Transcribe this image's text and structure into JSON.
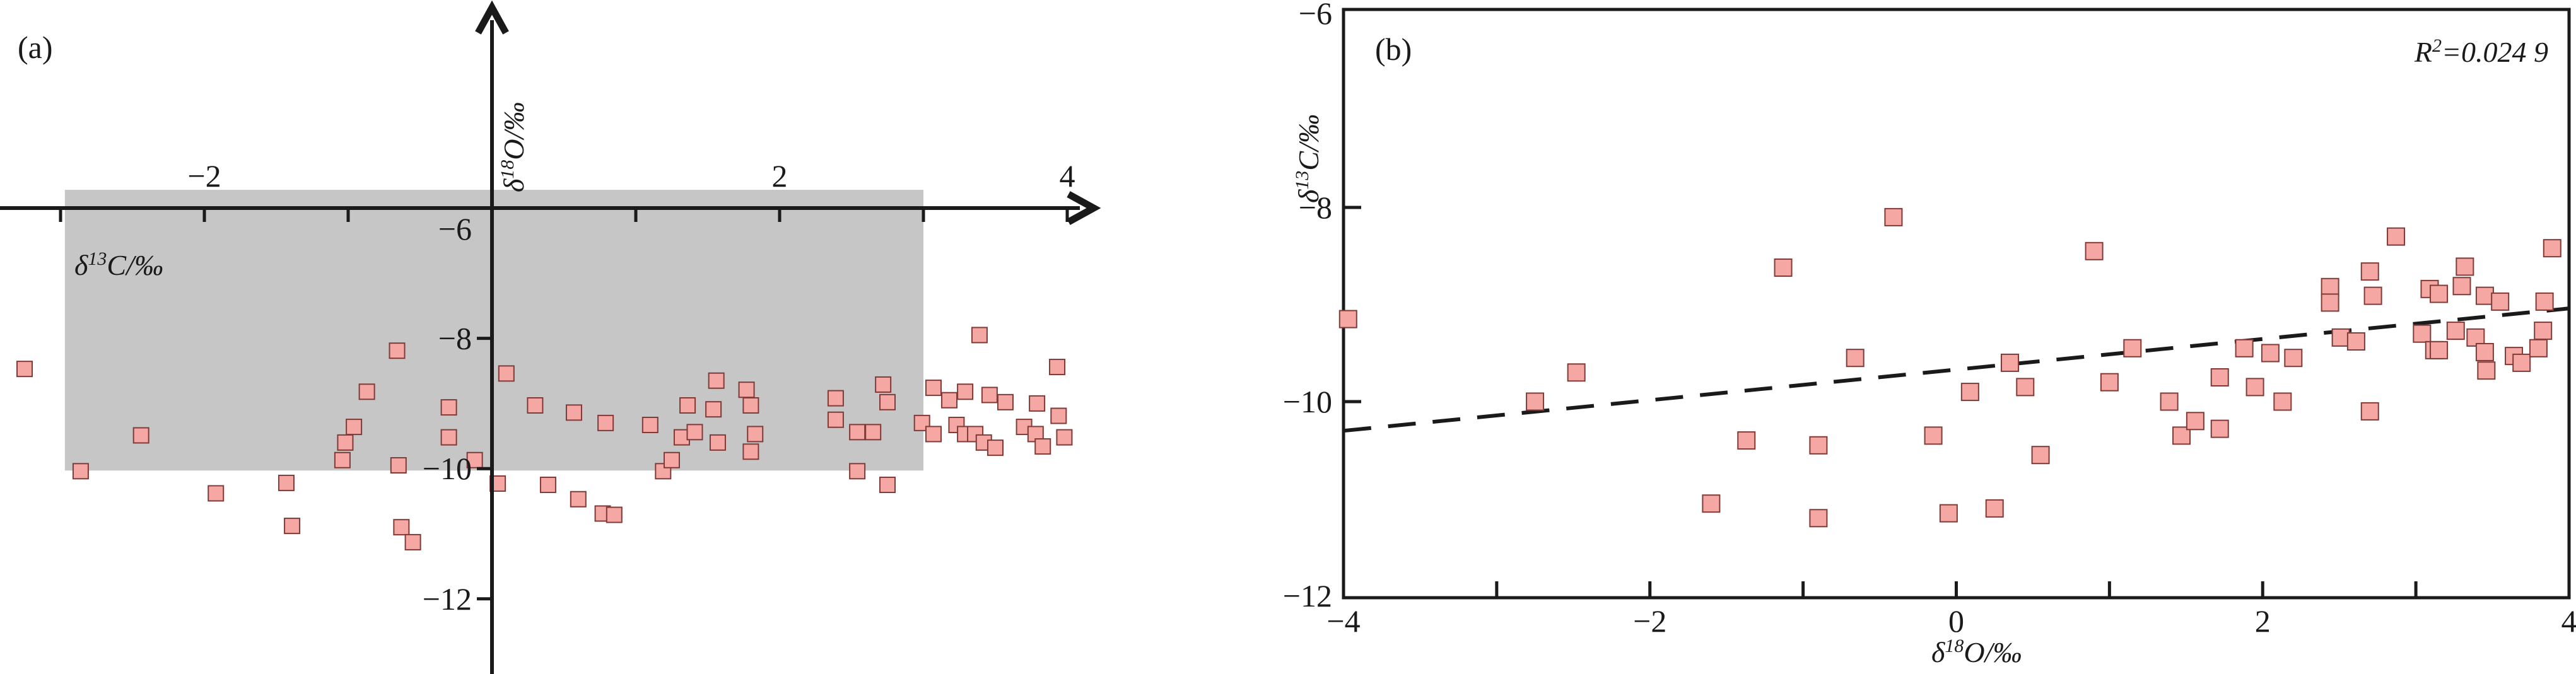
{
  "figure": {
    "background": "#ffffff",
    "ink_color": "#1a1a1a",
    "marker_fill": "#f5a7a3",
    "marker_stroke": "#7e3b38",
    "shaded_fill": "#c6c6c6"
  },
  "chart_data": [
    {
      "type": "scatter",
      "panel_tag": "(a)",
      "title": "",
      "xlabel": "δ¹³C/‰",
      "xlabel_parts": {
        "sym": "δ",
        "sup": "13",
        "rest": "C/‰"
      },
      "ylabel": "δ¹⁸O/‰",
      "ylabel_parts": {
        "sym": "δ",
        "sup": "18",
        "rest": "O/‰"
      },
      "xlim": [
        -3.4,
        4.2
      ],
      "ylim": [
        -13.3,
        -2.9
      ],
      "axis_style": "crossing-arrows",
      "grid": false,
      "x_tick_marks": [
        -3,
        -2,
        -1,
        1,
        2,
        3,
        4
      ],
      "x_tick_labels": [
        {
          "v": -2,
          "label": "−2"
        },
        {
          "v": 2,
          "label": "2"
        },
        {
          "v": 4,
          "label": "4"
        }
      ],
      "y_tick_marks": [
        -8,
        -10,
        -12
      ],
      "y_tick_labels": [
        {
          "v": -6,
          "label": "−6"
        },
        {
          "v": -8,
          "label": "−8"
        },
        {
          "v": -10,
          "label": "−10"
        },
        {
          "v": -12,
          "label": "−12"
        }
      ],
      "shaded_region": {
        "x1": -2.97,
        "x2": 3.0,
        "y1": -5.72,
        "y2": -10.03
      },
      "points": [
        [
          -3.25,
          -8.47
        ],
        [
          -2.86,
          -10.04
        ],
        [
          -2.44,
          -9.49
        ],
        [
          -1.92,
          -10.38
        ],
        [
          -1.43,
          -10.22
        ],
        [
          -1.39,
          -10.88
        ],
        [
          -1.04,
          -9.87
        ],
        [
          -1.02,
          -9.6
        ],
        [
          -0.96,
          -9.36
        ],
        [
          -0.87,
          -8.82
        ],
        [
          -0.66,
          -8.19
        ],
        [
          -0.65,
          -9.95
        ],
        [
          -0.63,
          -10.9
        ],
        [
          -0.55,
          -11.13
        ],
        [
          -0.3,
          -9.06
        ],
        [
          -0.3,
          -9.52
        ],
        [
          -0.12,
          -9.87
        ],
        [
          0.04,
          -10.23
        ],
        [
          0.1,
          -8.54
        ],
        [
          0.3,
          -9.03
        ],
        [
          0.39,
          -10.25
        ],
        [
          0.57,
          -9.14
        ],
        [
          0.6,
          -10.47
        ],
        [
          0.77,
          -10.69
        ],
        [
          0.85,
          -10.71
        ],
        [
          0.79,
          -9.3
        ],
        [
          1.1,
          -9.33
        ],
        [
          1.19,
          -10.04
        ],
        [
          1.25,
          -9.87
        ],
        [
          1.32,
          -9.52
        ],
        [
          1.36,
          -9.03
        ],
        [
          1.41,
          -9.44
        ],
        [
          1.54,
          -9.09
        ],
        [
          1.56,
          -8.65
        ],
        [
          1.57,
          -9.6
        ],
        [
          1.77,
          -8.79
        ],
        [
          1.8,
          -9.03
        ],
        [
          1.83,
          -9.47
        ],
        [
          1.8,
          -9.74
        ],
        [
          2.39,
          -8.92
        ],
        [
          2.39,
          -9.25
        ],
        [
          2.54,
          -9.44
        ],
        [
          2.54,
          -10.04
        ],
        [
          2.65,
          -9.44
        ],
        [
          2.72,
          -8.71
        ],
        [
          2.75,
          -8.98
        ],
        [
          2.75,
          -10.25
        ],
        [
          2.99,
          -9.3
        ],
        [
          3.07,
          -8.76
        ],
        [
          3.07,
          -9.47
        ],
        [
          3.18,
          -8.95
        ],
        [
          3.23,
          -9.33
        ],
        [
          3.29,
          -8.82
        ],
        [
          3.29,
          -9.47
        ],
        [
          3.36,
          -9.47
        ],
        [
          3.39,
          -7.95
        ],
        [
          3.42,
          -9.6
        ],
        [
          3.46,
          -8.87
        ],
        [
          3.5,
          -9.68
        ],
        [
          3.57,
          -8.98
        ],
        [
          3.7,
          -9.36
        ],
        [
          3.78,
          -9.47
        ],
        [
          3.79,
          -9.0
        ],
        [
          3.83,
          -9.66
        ],
        [
          3.93,
          -8.44
        ],
        [
          3.94,
          -9.19
        ],
        [
          3.98,
          -9.52
        ]
      ]
    },
    {
      "type": "scatter",
      "panel_tag": "(b)",
      "title": "",
      "xlabel": "δ¹⁸O/‰",
      "xlabel_parts": {
        "sym": "δ",
        "sup": "18",
        "rest": "O/‰"
      },
      "ylabel": "δ¹³C/‰",
      "ylabel_parts": {
        "sym": "δ",
        "sup": "13",
        "rest": "C/‰"
      },
      "xlim": [
        -4,
        4
      ],
      "ylim": [
        -12,
        -6
      ],
      "axis_style": "box-frame",
      "grid": false,
      "x_tick_marks": [
        -3,
        -2,
        -1,
        0,
        1,
        2,
        3
      ],
      "x_tick_labels": [
        {
          "v": -4,
          "label": "−4"
        },
        {
          "v": -2,
          "label": "−2"
        },
        {
          "v": 0,
          "label": "0"
        },
        {
          "v": 2,
          "label": "2"
        },
        {
          "v": 4,
          "label": "4"
        }
      ],
      "y_tick_marks": [
        -8,
        -10
      ],
      "y_tick_labels": [
        {
          "v": -6,
          "label": "−6"
        },
        {
          "v": -8,
          "label": "−8"
        },
        {
          "v": -10,
          "label": "−10"
        },
        {
          "v": -12,
          "label": "−12"
        }
      ],
      "annotation": {
        "text": "R²=0.024 9",
        "parts": {
          "r": "R",
          "sup": "2",
          "rest": "=0.024 9"
        }
      },
      "trend_line": {
        "style": "dashed",
        "x1": -4,
        "y1": -10.3,
        "x2": 4,
        "y2": -9.04
      },
      "points": [
        [
          -3.97,
          -9.15
        ],
        [
          -2.75,
          -10.0
        ],
        [
          -2.48,
          -9.7
        ],
        [
          -1.6,
          -11.05
        ],
        [
          -1.37,
          -10.4
        ],
        [
          -1.13,
          -8.62
        ],
        [
          -0.9,
          -10.45
        ],
        [
          -0.9,
          -11.2
        ],
        [
          -0.66,
          -9.55
        ],
        [
          -0.41,
          -8.1
        ],
        [
          -0.15,
          -10.35
        ],
        [
          -0.05,
          -11.15
        ],
        [
          0.09,
          -9.9
        ],
        [
          0.25,
          -11.1
        ],
        [
          0.35,
          -9.6
        ],
        [
          0.45,
          -9.85
        ],
        [
          0.55,
          -10.55
        ],
        [
          0.9,
          -8.45
        ],
        [
          1.0,
          -9.8
        ],
        [
          1.15,
          -9.45
        ],
        [
          1.39,
          -10.0
        ],
        [
          1.47,
          -10.35
        ],
        [
          1.56,
          -10.2
        ],
        [
          1.72,
          -10.28
        ],
        [
          1.72,
          -9.75
        ],
        [
          1.88,
          -9.45
        ],
        [
          1.95,
          -9.85
        ],
        [
          2.05,
          -9.5
        ],
        [
          2.13,
          -10.0
        ],
        [
          2.2,
          -9.55
        ],
        [
          2.44,
          -8.82
        ],
        [
          2.44,
          -8.98
        ],
        [
          2.51,
          -9.34
        ],
        [
          2.61,
          -9.38
        ],
        [
          2.7,
          -8.66
        ],
        [
          2.7,
          -10.1
        ],
        [
          2.72,
          -8.91
        ],
        [
          2.87,
          -8.3
        ],
        [
          3.04,
          -9.3
        ],
        [
          3.09,
          -8.84
        ],
        [
          3.12,
          -9.47
        ],
        [
          3.15,
          -8.89
        ],
        [
          3.15,
          -9.47
        ],
        [
          3.26,
          -9.27
        ],
        [
          3.3,
          -8.81
        ],
        [
          3.32,
          -8.61
        ],
        [
          3.39,
          -9.34
        ],
        [
          3.45,
          -8.91
        ],
        [
          3.45,
          -9.49
        ],
        [
          3.46,
          -9.68
        ],
        [
          3.55,
          -8.97
        ],
        [
          3.64,
          -9.53
        ],
        [
          3.69,
          -9.6
        ],
        [
          3.8,
          -9.45
        ],
        [
          3.83,
          -9.27
        ],
        [
          3.84,
          -8.97
        ],
        [
          3.89,
          -8.42
        ]
      ]
    }
  ]
}
